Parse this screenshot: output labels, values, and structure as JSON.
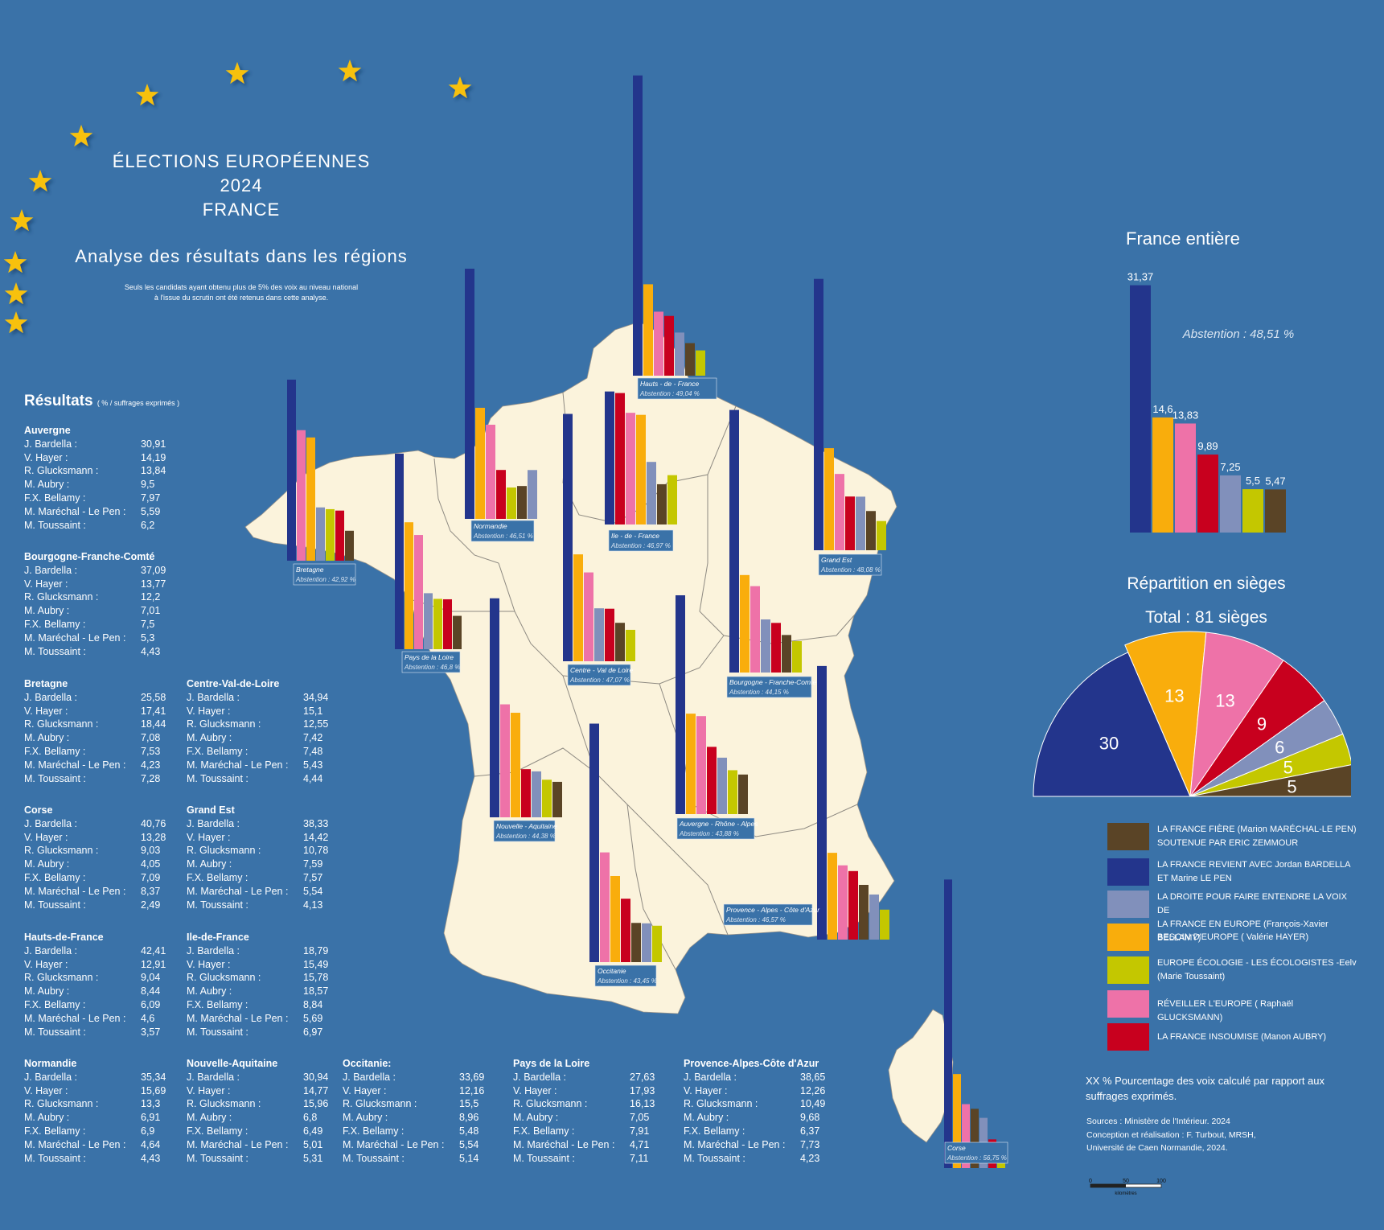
{
  "title": {
    "line1": "ÉLECTIONS EUROPÉENNES",
    "line2": "2024",
    "line3": "FRANCE"
  },
  "subtitle": "Analyse des résultats dans les régions",
  "note": {
    "line1": "Seuls les candidats ayant obtenu plus de 5% des voix au niveau national",
    "line2": "à l'issue du scrutin ont été retenus dans cette analyse."
  },
  "colors": {
    "background": "#3a72a8",
    "land": "#fbf3dc",
    "bardella": "#23358c",
    "hayer": "#f9ad0c",
    "glucksmann": "#ee72a8",
    "aubry": "#c8001e",
    "bellamy": "#8190bb",
    "toussaint": "#c4c700",
    "marechal": "#5a4426"
  },
  "results_header": {
    "label": "Résultats",
    "unit": "( % / suffrages exprimés )"
  },
  "candidate_labels": [
    "J. Bardella :",
    "V. Hayer :",
    "R. Glucksmann :",
    "M. Aubry :",
    "F.X. Bellamy :",
    "M. Maréchal - Le Pen :",
    "M. Toussaint :"
  ],
  "regions": [
    {
      "name": "Auvergne",
      "values": [
        "30,91",
        "14,19",
        "13,84",
        "9,5",
        "7,97",
        "5,59",
        "6,2"
      ]
    },
    {
      "name": "Bourgogne-Franche-Comté",
      "values": [
        "37,09",
        "13,77",
        "12,2",
        "7,01",
        "7,5",
        "5,3",
        "4,43"
      ]
    },
    {
      "name": "Bretagne",
      "values": [
        "25,58",
        "17,41",
        "18,44",
        "7,08",
        "7,53",
        "4,23",
        "7,28"
      ]
    },
    {
      "name": "Centre-Val-de-Loire",
      "values": [
        "34,94",
        "15,1",
        "12,55",
        "7,42",
        "7,48",
        "5,43",
        "4,44"
      ]
    },
    {
      "name": "Corse",
      "values": [
        "40,76",
        "13,28",
        "9,03",
        "4,05",
        "7,09",
        "8,37",
        "2,49"
      ]
    },
    {
      "name": "Grand Est",
      "values": [
        "38,33",
        "14,42",
        "10,78",
        "7,59",
        "7,57",
        "5,54",
        "4,13"
      ]
    },
    {
      "name": "Hauts-de-France",
      "values": [
        "42,41",
        "12,91",
        "9,04",
        "8,44",
        "6,09",
        "4,6",
        "3,57"
      ]
    },
    {
      "name": "Ile-de-France",
      "values": [
        "18,79",
        "15,49",
        "15,78",
        "18,57",
        "8,84",
        "5,69",
        "6,97"
      ]
    },
    {
      "name": "Normandie",
      "values": [
        "35,34",
        "15,69",
        "13,3",
        "6,91",
        "6,9",
        "4,64",
        "4,43"
      ]
    },
    {
      "name": "Nouvelle-Aquitaine",
      "values": [
        "30,94",
        "14,77",
        "15,96",
        "6,8",
        "6,49",
        "5,01",
        "5,31"
      ]
    },
    {
      "name": "Occitanie:",
      "values": [
        "33,69",
        "12,16",
        "15,5",
        "8,96",
        "5,48",
        "5,54",
        "5,14"
      ]
    },
    {
      "name": "Pays de la Loire",
      "values": [
        "27,63",
        "17,93",
        "16,13",
        "7,05",
        "7,91",
        "4,71",
        "7,11"
      ]
    },
    {
      "name": "Provence-Alpes-Côte d'Azur",
      "values": [
        "38,65",
        "12,26",
        "10,49",
        "9,68",
        "6,37",
        "7,73",
        "4,23"
      ]
    }
  ],
  "map_labels": [
    {
      "name": "Hauts - de - France",
      "abst": "Abstention : 49,04 %"
    },
    {
      "name": "Normandie",
      "abst": "Abstention : 46,51 %"
    },
    {
      "name": "Bretagne",
      "abst": "Abstention : 42,92 %"
    },
    {
      "name": "Ile - de - France",
      "abst": "Abstention : 46,97 %"
    },
    {
      "name": "Grand Est",
      "abst": "Abstention : 48,08 %"
    },
    {
      "name": "Pays de la Loire",
      "abst": "Abstention : 46,8 %"
    },
    {
      "name": "Centre - Val de Loire",
      "abst": "Abstention : 47,07 %"
    },
    {
      "name": "Bourgogne - Franche-Comté",
      "abst": "Abstention : 44,15 %"
    },
    {
      "name": "Nouvelle - Aquitaine",
      "abst": "Abstention : 44,38 %"
    },
    {
      "name": "Auvergne - Rhône - Alpes",
      "abst": "Abstention : 43,88 %"
    },
    {
      "name": "Occitanie",
      "abst": "Abstention : 43,45 %"
    },
    {
      "name": "Provence - Alpes - Côte d'Azur",
      "abst": "Abstention : 46,57 %"
    },
    {
      "name": "Corse",
      "abst": "Abstention : 56,75 %"
    }
  ],
  "france": {
    "title": "France entière",
    "abstention": "Abstention : 48,51 %",
    "bars": [
      {
        "label": "31,37",
        "value": 31.37,
        "color": "#23358c"
      },
      {
        "label": "14,6",
        "value": 14.6,
        "color": "#f9ad0c"
      },
      {
        "label": "13,83",
        "value": 13.83,
        "color": "#ee72a8"
      },
      {
        "label": "9,89",
        "value": 9.89,
        "color": "#c8001e"
      },
      {
        "label": "7,25",
        "value": 7.25,
        "color": "#8190bb"
      },
      {
        "label": "5,5",
        "value": 5.5,
        "color": "#c4c700"
      },
      {
        "label": "5,47",
        "value": 5.47,
        "color": "#5a4426"
      }
    ]
  },
  "seats": {
    "title": "Répartition en sièges",
    "total": "Total : 81 sièges",
    "slices": [
      {
        "label": "30",
        "value": 30,
        "color": "#23358c"
      },
      {
        "label": "13",
        "value": 13,
        "color": "#f9ad0c"
      },
      {
        "label": "13",
        "value": 13,
        "color": "#ee72a8"
      },
      {
        "label": "9",
        "value": 9,
        "color": "#c8001e"
      },
      {
        "label": "6",
        "value": 6,
        "color": "#8190bb"
      },
      {
        "label": "5",
        "value": 5,
        "color": "#c4c700"
      },
      {
        "label": "5",
        "value": 5,
        "color": "#5a4426"
      }
    ]
  },
  "legend": [
    {
      "color": "#5a4426",
      "line1": "LA FRANCE FIÈRE (Marion MARÉCHAL-LE PEN)",
      "line2": "SOUTENUE PAR ERIC ZEMMOUR"
    },
    {
      "color": "#23358c",
      "line1": "LA FRANCE REVIENT AVEC Jordan BARDELLA",
      "line2": "ET Marine LE PEN"
    },
    {
      "color": "#8190bb",
      "line1": "LA DROITE POUR FAIRE ENTENDRE LA VOIX DE",
      "line2": "LA FRANCE EN EUROPE (François-Xavier BELLAMY)"
    },
    {
      "color": "#f9ad0c",
      "line1": "BESOIN D'EUROPE ( Valérie HAYER)",
      "line2": ""
    },
    {
      "color": "#c4c700",
      "line1": "EUROPE ÉCOLOGIE - LES ÉCOLOGISTES -Eelv",
      "line2": "(Marie Toussaint)"
    },
    {
      "color": "#ee72a8",
      "line1": "RÉVEILLER L'EUROPE ( Raphaël GLUCKSMANN)",
      "line2": ""
    },
    {
      "color": "#c8001e",
      "line1": "LA FRANCE INSOUMISE (Manon AUBRY)",
      "line2": ""
    }
  ],
  "footnote": {
    "line1": "XX %   Pourcentage des voix calculé par rapport aux",
    "line2": "suffrages exprimés."
  },
  "sources": {
    "line1": "Sources : Ministère de l'Intérieur. 2024",
    "line2": "Conception et réalisation : F. Turbout, MRSH,",
    "line3": "Université de Caen Normandie, 2024."
  },
  "scale": {
    "t0": "0",
    "t1": "50",
    "t2": "100",
    "unit": "kilomètres"
  }
}
